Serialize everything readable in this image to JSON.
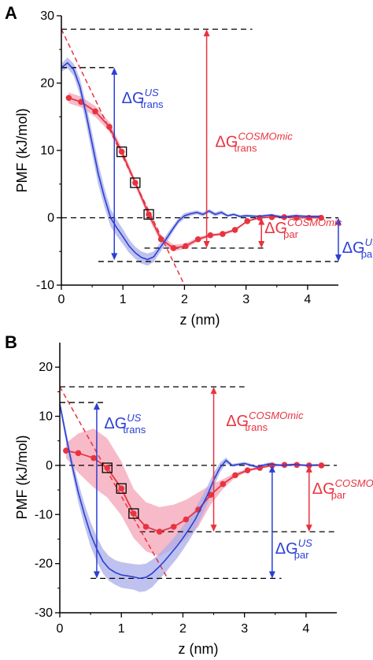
{
  "colors": {
    "cosmomic": "#e8333f",
    "cosmomic_band": "#f4a3b7",
    "us": "#2b3fd6",
    "us_band": "#a9aee8",
    "black": "#000000"
  },
  "chart_data": [
    {
      "type": "line",
      "panel": "A",
      "xlabel": "z (nm)",
      "ylabel": "PMF (kJ/mol)",
      "xlim": [
        0,
        4.5
      ],
      "ylim": [
        -10,
        30
      ],
      "xticks": [
        "0",
        "1",
        "2",
        "3",
        "4"
      ],
      "yticks": [
        "-10",
        "0",
        "10",
        "20",
        "30"
      ],
      "series": [
        {
          "key": "cosmomic",
          "x": [
            0.12,
            0.32,
            0.55,
            0.78,
            0.98,
            1.2,
            1.42,
            1.62,
            1.82,
            2.02,
            2.22,
            2.42,
            2.62,
            2.82,
            3.02,
            3.22,
            3.42,
            3.62,
            3.82,
            4.02,
            4.22
          ],
          "y": [
            17.8,
            17.2,
            15.8,
            13.5,
            9.8,
            5.2,
            0.5,
            -3.2,
            -4.5,
            -4.2,
            -3.2,
            -2.6,
            -2.4,
            -1.8,
            -0.5,
            0.0,
            0.1,
            0.1,
            0.0,
            0.0,
            0.0
          ],
          "band_half_width": [
            0.8,
            0.8,
            0.8,
            0.7,
            0.6,
            0.5,
            0.6,
            0.6,
            0.5,
            0.4,
            0.3,
            0.2,
            0.2,
            0.2,
            0.1,
            0.1,
            0.1,
            0.1,
            0.1,
            0.1,
            0.1
          ]
        },
        {
          "key": "us",
          "x": [
            0.0,
            0.1,
            0.2,
            0.3,
            0.4,
            0.5,
            0.6,
            0.7,
            0.8,
            0.9,
            1.0,
            1.1,
            1.2,
            1.3,
            1.4,
            1.5,
            1.6,
            1.7,
            1.8,
            1.9,
            2.0,
            2.1,
            2.2,
            2.3,
            2.4,
            2.5,
            2.6,
            2.7,
            2.8,
            2.9,
            3.0,
            3.2,
            3.4,
            3.6,
            3.8,
            4.0,
            4.2
          ],
          "y": [
            22.3,
            23.0,
            22.0,
            19.5,
            15.5,
            11.0,
            6.5,
            3.0,
            0.0,
            -1.5,
            -2.8,
            -4.2,
            -5.2,
            -5.9,
            -6.2,
            -5.8,
            -4.5,
            -3.2,
            -1.8,
            -0.5,
            0.3,
            0.6,
            0.8,
            0.5,
            1.0,
            0.5,
            0.8,
            0.3,
            0.5,
            0.2,
            0.3,
            0.2,
            0.4,
            0.1,
            0.3,
            0.2,
            0.2
          ],
          "band_half_width": [
            0.6,
            0.8,
            0.9,
            1.2,
            1.5,
            1.6,
            1.6,
            1.4,
            1.3,
            1.2,
            1.1,
            1.0,
            0.9,
            0.9,
            0.9,
            0.8,
            0.7,
            0.6,
            0.5,
            0.4,
            0.4,
            0.3,
            0.3,
            0.3,
            0.3,
            0.3,
            0.3,
            0.2,
            0.2,
            0.2,
            0.2,
            0.2,
            0.2,
            0.2,
            0.2,
            0.2,
            0.2
          ]
        }
      ],
      "boxed_points": [
        [
          0.98,
          9.8
        ],
        [
          1.2,
          5.2
        ],
        [
          1.42,
          0.5
        ]
      ],
      "fit_line": {
        "x": [
          0.0,
          2.0
        ],
        "y": [
          28.0,
          -10.0
        ]
      },
      "reference_lines": [
        {
          "y": 28.0,
          "x": [
            0.0,
            3.1
          ]
        },
        {
          "y": 22.3,
          "x": [
            0.0,
            0.85
          ]
        },
        {
          "y": 0.0,
          "x": [
            0.0,
            4.5
          ]
        },
        {
          "y": -4.5,
          "x": [
            1.35,
            3.3
          ]
        },
        {
          "y": -6.5,
          "x": [
            0.6,
            4.5
          ]
        }
      ],
      "arrows": [
        {
          "key": "us_trans",
          "x": 0.86,
          "y": [
            22.3,
            -6.3
          ]
        },
        {
          "key": "cosmo_trans",
          "x": 2.36,
          "y": [
            28.0,
            -4.5
          ]
        },
        {
          "key": "cosmo_par",
          "x": 3.25,
          "y": [
            0.0,
            -4.5
          ]
        },
        {
          "key": "us_par",
          "x": 4.5,
          "y": [
            0.0,
            -6.5
          ]
        }
      ],
      "annotations": [
        {
          "key": "us_trans",
          "main": "ΔG",
          "sup": "US",
          "sub": "trans",
          "x": 0.98,
          "y": 17.0
        },
        {
          "key": "cosmo_trans",
          "main": "ΔG",
          "sup": "COSMOmic",
          "sub": "trans",
          "x": 2.5,
          "y": 10.5
        },
        {
          "key": "cosmo_par",
          "main": "ΔG",
          "sup": "COSMOmic",
          "sub": "par",
          "x": 3.3,
          "y": -2.3
        },
        {
          "key": "us_par",
          "main": "ΔG",
          "sup": "US",
          "sub": "par",
          "x": 4.56,
          "y": -5.2
        }
      ]
    },
    {
      "type": "line",
      "panel": "B",
      "xlabel": "z (nm)",
      "ylabel": "PMF (kJ/mol)",
      "xlim": [
        0,
        4.5
      ],
      "ylim": [
        -30,
        25
      ],
      "xticks": [
        "0",
        "1",
        "2",
        "3",
        "4"
      ],
      "yticks": [
        "-30",
        "-20",
        "-10",
        "0",
        "10",
        "20"
      ],
      "series": [
        {
          "key": "cosmomic",
          "x": [
            0.1,
            0.3,
            0.55,
            0.77,
            1.0,
            1.2,
            1.4,
            1.62,
            1.85,
            2.05,
            2.25,
            2.45,
            2.65,
            2.85,
            3.05,
            3.25,
            3.45,
            3.65,
            3.85,
            4.05,
            4.25
          ],
          "y": [
            3.0,
            2.5,
            1.5,
            -0.5,
            -4.7,
            -9.8,
            -12.5,
            -13.5,
            -12.5,
            -11.0,
            -9.0,
            -6.0,
            -3.8,
            -2.0,
            -1.0,
            -0.5,
            0.0,
            0.1,
            0.1,
            0.0,
            0.0
          ],
          "band_half_width": [
            1.5,
            4.0,
            6.0,
            6.0,
            5.5,
            5.0,
            5.0,
            5.0,
            4.5,
            4.0,
            3.5,
            2.0,
            1.0,
            0.5,
            0.3,
            0.2,
            0.2,
            0.2,
            0.2,
            0.1,
            0.1
          ]
        },
        {
          "key": "us",
          "x": [
            0.0,
            0.1,
            0.2,
            0.3,
            0.4,
            0.5,
            0.6,
            0.7,
            0.8,
            0.9,
            1.0,
            1.1,
            1.2,
            1.3,
            1.4,
            1.5,
            1.6,
            1.7,
            1.8,
            1.9,
            2.0,
            2.1,
            2.2,
            2.3,
            2.4,
            2.5,
            2.6,
            2.7,
            2.8,
            3.0,
            3.2,
            3.4,
            3.6,
            3.8,
            4.0,
            4.2
          ],
          "y": [
            12.5,
            6.0,
            0.0,
            -5.5,
            -10.0,
            -14.0,
            -17.0,
            -19.5,
            -21.0,
            -21.8,
            -22.3,
            -22.5,
            -22.7,
            -23.0,
            -22.8,
            -22.0,
            -20.8,
            -19.5,
            -18.0,
            -16.5,
            -14.8,
            -13.0,
            -11.0,
            -8.5,
            -6.0,
            -3.0,
            -0.5,
            1.0,
            0.0,
            0.4,
            -0.3,
            0.3,
            0.0,
            0.2,
            0.0,
            0.1
          ],
          "band_half_width": [
            0.8,
            1.2,
            1.5,
            2.0,
            2.2,
            2.5,
            2.5,
            2.5,
            2.5,
            2.5,
            2.6,
            2.6,
            2.6,
            2.8,
            2.8,
            2.8,
            2.6,
            2.6,
            2.5,
            2.5,
            2.4,
            2.3,
            2.2,
            2.0,
            1.8,
            1.5,
            1.0,
            0.6,
            0.3,
            0.3,
            0.3,
            0.3,
            0.2,
            0.2,
            0.2,
            0.2
          ]
        }
      ],
      "boxed_points": [
        [
          0.77,
          -0.5
        ],
        [
          1.0,
          -4.7
        ],
        [
          1.2,
          -9.8
        ]
      ],
      "fit_line": {
        "x": [
          0.0,
          1.75
        ],
        "y": [
          16.0,
          -23.0
        ]
      },
      "reference_lines": [
        {
          "y": 16.0,
          "x": [
            0.0,
            3.0
          ]
        },
        {
          "y": 12.8,
          "x": [
            0.0,
            0.75
          ]
        },
        {
          "y": 0.0,
          "x": [
            0.0,
            4.5
          ]
        },
        {
          "y": -13.5,
          "x": [
            1.3,
            4.5
          ]
        },
        {
          "y": -23.0,
          "x": [
            0.5,
            3.6
          ]
        }
      ],
      "arrows": [
        {
          "key": "us_trans",
          "x": 0.6,
          "y": [
            12.8,
            -23.0
          ]
        },
        {
          "key": "cosmo_trans",
          "x": 2.5,
          "y": [
            16.0,
            -13.5
          ]
        },
        {
          "key": "cosmo_par",
          "x": 4.05,
          "y": [
            0.0,
            -13.5
          ]
        },
        {
          "key": "us_par",
          "x": 3.45,
          "y": [
            0.0,
            -23.0
          ]
        }
      ],
      "annotations": [
        {
          "key": "us_trans",
          "main": "ΔG",
          "sup": "US",
          "sub": "trans",
          "x": 0.72,
          "y": 7.5
        },
        {
          "key": "cosmo_trans",
          "main": "ΔG",
          "sup": "COSMOmic",
          "sub": "trans",
          "x": 2.7,
          "y": 8.0
        },
        {
          "key": "cosmo_par",
          "main": "ΔG",
          "sup": "COSMOmic",
          "sub": "par",
          "x": 4.1,
          "y": -5.8
        },
        {
          "key": "us_par",
          "main": "ΔG",
          "sup": "US",
          "sub": "par",
          "x": 3.5,
          "y": -18.0
        }
      ]
    }
  ],
  "panel_letters": [
    "A",
    "B"
  ]
}
